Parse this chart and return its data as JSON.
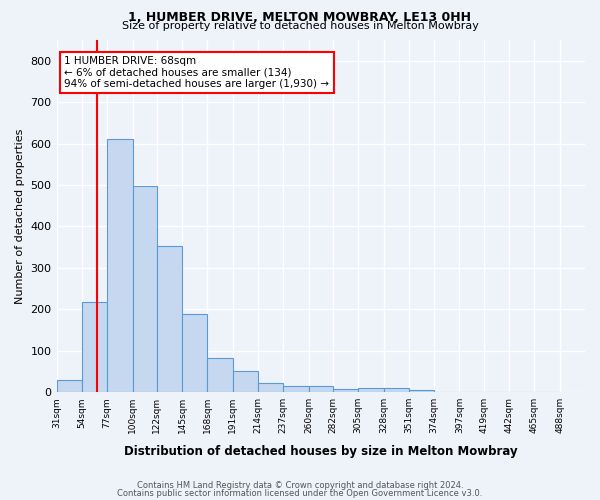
{
  "title1": "1, HUMBER DRIVE, MELTON MOWBRAY, LE13 0HH",
  "title2": "Size of property relative to detached houses in Melton Mowbray",
  "xlabel": "Distribution of detached houses by size in Melton Mowbray",
  "ylabel": "Number of detached properties",
  "bin_labels": [
    "31sqm",
    "54sqm",
    "77sqm",
    "100sqm",
    "122sqm",
    "145sqm",
    "168sqm",
    "191sqm",
    "214sqm",
    "237sqm",
    "260sqm",
    "282sqm",
    "305sqm",
    "328sqm",
    "351sqm",
    "374sqm",
    "397sqm",
    "419sqm",
    "442sqm",
    "465sqm",
    "488sqm"
  ],
  "bar_values": [
    30,
    218,
    610,
    497,
    352,
    188,
    83,
    51,
    22,
    16,
    15,
    8,
    10,
    9,
    6,
    0,
    0,
    0,
    0,
    0
  ],
  "bar_color": "#c5d8f0",
  "bar_edge_color": "#5b9bd5",
  "vline_x": 68,
  "vline_color": "red",
  "annotation_line1": "1 HUMBER DRIVE: 68sqm",
  "annotation_line2": "← 6% of detached houses are smaller (134)",
  "annotation_line3": "94% of semi-detached houses are larger (1,930) →",
  "annotation_box_color": "white",
  "annotation_box_edge": "red",
  "ylim": [
    0,
    850
  ],
  "yticks": [
    0,
    100,
    200,
    300,
    400,
    500,
    600,
    700,
    800
  ],
  "footer1": "Contains HM Land Registry data © Crown copyright and database right 2024.",
  "footer2": "Contains public sector information licensed under the Open Government Licence v3.0.",
  "bg_color": "#eef2f9",
  "grid_color": "white",
  "bin_starts": [
    31,
    54,
    77,
    100,
    122,
    145,
    168,
    191,
    214,
    237,
    260,
    282,
    305,
    328,
    351,
    374,
    397,
    419,
    442,
    465
  ],
  "bin_widths": [
    23,
    23,
    23,
    22,
    23,
    23,
    23,
    23,
    23,
    23,
    22,
    23,
    23,
    23,
    23,
    23,
    22,
    23,
    23,
    23
  ],
  "xlim_min": 31,
  "xlim_max": 511
}
